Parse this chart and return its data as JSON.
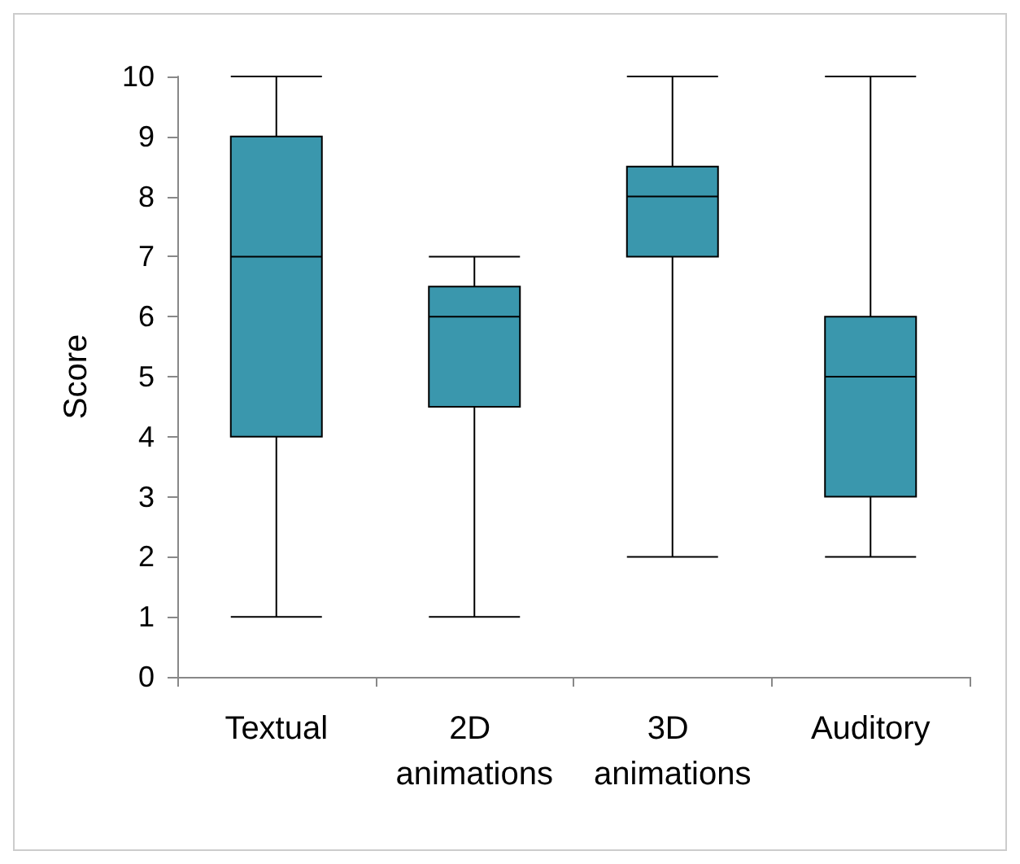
{
  "chart_data": {
    "type": "box",
    "ylabel": "Score",
    "categories": [
      "Textual",
      "2D animations",
      "3D animations",
      "Auditory"
    ],
    "boxes": [
      {
        "low": 1,
        "q1": 4,
        "median": 7,
        "q3": 9,
        "high": 10
      },
      {
        "low": 1,
        "q1": 4.5,
        "median": 6,
        "q3": 6.5,
        "high": 7
      },
      {
        "low": 2,
        "q1": 7,
        "median": 8,
        "q3": 8.5,
        "high": 10
      },
      {
        "low": 2,
        "q1": 3,
        "median": 5,
        "q3": 6,
        "high": 10
      }
    ],
    "color": "#3a97ad",
    "ylim": [
      0,
      10
    ],
    "yticks": [
      0,
      1,
      2,
      3,
      4,
      5,
      6,
      7,
      8,
      9,
      10
    ],
    "grid": false
  }
}
